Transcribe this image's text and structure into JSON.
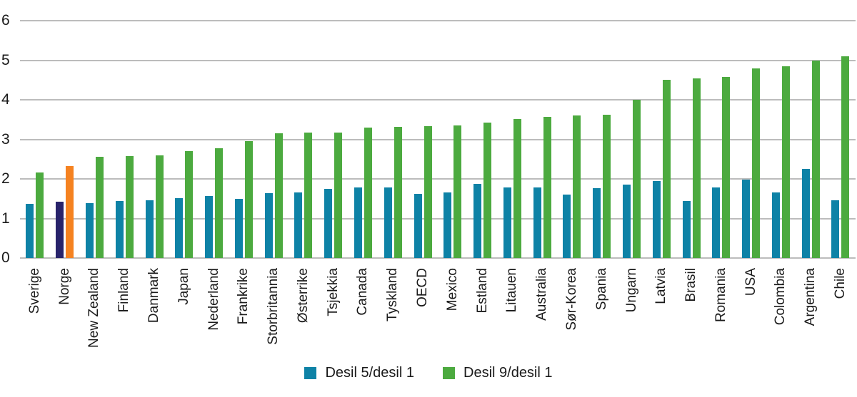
{
  "figure": {
    "background": "#ffffff",
    "text_color": "#1a1a1a",
    "gridline_color": "#bcbcbc"
  },
  "chart_data": {
    "type": "bar",
    "title": "",
    "xlabel": "",
    "ylabel": "",
    "ylim": [
      0,
      6
    ],
    "yticks": [
      0,
      1,
      2,
      3,
      4,
      5,
      6
    ],
    "grid": true,
    "legend_position": "bottom",
    "categories": [
      "Sverige",
      "Norge",
      "New Zealand",
      "Finland",
      "Danmark",
      "Japan",
      "Nederland",
      "Frankrike",
      "Storbritannia",
      "Østerrike",
      "Tsjekkia",
      "Canada",
      "Tyskland",
      "OECD",
      "Mexico",
      "Estland",
      "Litauen",
      "Australia",
      "Sør-Korea",
      "Spania",
      "Ungarn",
      "Latvia",
      "Brasil",
      "Romania",
      "USA",
      "Colombia",
      "Argentina",
      "Chile"
    ],
    "series": [
      {
        "name": "Desil 5/desil 1",
        "color": "#0e82a6",
        "values": [
          1.37,
          1.43,
          1.38,
          1.45,
          1.46,
          1.51,
          1.56,
          1.5,
          1.64,
          1.66,
          1.74,
          1.78,
          1.78,
          1.63,
          1.66,
          1.88,
          1.78,
          1.78,
          1.61,
          1.77,
          1.86,
          1.94,
          1.45,
          1.78,
          1.98,
          1.66,
          2.25,
          1.46
        ]
      },
      {
        "name": "Desil 9/desil 1",
        "color": "#4caa3f",
        "values": [
          2.16,
          2.33,
          2.55,
          2.57,
          2.59,
          2.71,
          2.78,
          2.95,
          3.15,
          3.17,
          3.17,
          3.3,
          3.31,
          3.34,
          3.35,
          3.43,
          3.51,
          3.56,
          3.61,
          3.63,
          4.0,
          4.5,
          4.54,
          4.57,
          4.8,
          4.84,
          5.0,
          5.1
        ]
      }
    ],
    "highlight": {
      "category": "Norge",
      "colors": [
        "#28236b",
        "#f58220"
      ]
    }
  }
}
